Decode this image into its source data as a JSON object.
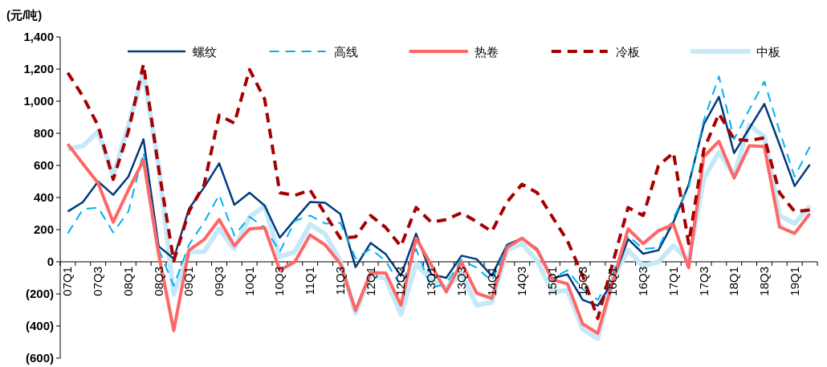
{
  "chart_data": {
    "type": "line",
    "ylabel": "(元/吨)",
    "categories": [
      "07Q1",
      null,
      "07Q3",
      null,
      "08Q1",
      null,
      "08Q3",
      null,
      "09Q1",
      null,
      "09Q3",
      null,
      "10Q1",
      null,
      "10Q3",
      null,
      "11Q1",
      null,
      "11Q3",
      null,
      "12Q1",
      null,
      "12Q3",
      null,
      "13Q1",
      null,
      "13Q3",
      null,
      "14Q1",
      null,
      "14Q3",
      null,
      "15Q1",
      null,
      "15Q3",
      null,
      "16Q1",
      null,
      "16Q3",
      null,
      "17Q1",
      null,
      "17Q3",
      null,
      "18Q1",
      null,
      "18Q3",
      null,
      "19Q1",
      null
    ],
    "series": [
      {
        "name": "螺纹",
        "color": "#003a7d",
        "line_style": "solid",
        "values": [
          313,
          372,
          500,
          417,
          530,
          763,
          97,
          20,
          330,
          463,
          613,
          355,
          430,
          350,
          150,
          263,
          372,
          367,
          297,
          -33,
          117,
          47,
          -87,
          175,
          -78,
          -100,
          38,
          17,
          -87,
          105,
          147,
          80,
          -103,
          -78,
          -237,
          -273,
          -120,
          142,
          50,
          72,
          247,
          480,
          855,
          1027,
          677,
          830,
          983,
          730,
          472,
          605
        ]
      },
      {
        "name": "高线",
        "color": "#00b0f0",
        "line_style": "dashed",
        "values": [
          177,
          327,
          338,
          183,
          313,
          680,
          80,
          -150,
          105,
          247,
          417,
          163,
          280,
          213,
          63,
          255,
          288,
          238,
          243,
          22,
          80,
          5,
          -153,
          80,
          -162,
          -137,
          13,
          -37,
          -120,
          97,
          147,
          72,
          -103,
          -53,
          -170,
          -237,
          -70,
          163,
          80,
          88,
          272,
          463,
          880,
          1155,
          763,
          947,
          1122,
          813,
          530,
          717
        ]
      },
      {
        "name": "热卷",
        "color": "#ff6666",
        "line_style": "solid",
        "values": [
          733,
          610,
          490,
          247,
          447,
          633,
          47,
          -428,
          72,
          138,
          263,
          100,
          205,
          213,
          -53,
          0,
          167,
          105,
          -12,
          -303,
          -67,
          -70,
          -270,
          147,
          -20,
          -187,
          -3,
          -195,
          -228,
          88,
          147,
          72,
          -112,
          -137,
          -387,
          -445,
          -120,
          205,
          113,
          193,
          233,
          -37,
          655,
          750,
          522,
          722,
          717,
          217,
          177,
          300
        ]
      },
      {
        "name": "冷板",
        "color": "#a50000",
        "line_style": "dashed",
        "values": [
          1177,
          1030,
          847,
          513,
          813,
          1230,
          580,
          5,
          313,
          480,
          913,
          863,
          1197,
          1013,
          430,
          413,
          447,
          297,
          147,
          155,
          288,
          213,
          97,
          338,
          247,
          263,
          305,
          250,
          188,
          372,
          483,
          430,
          280,
          130,
          -87,
          -353,
          -3,
          338,
          288,
          597,
          680,
          113,
          697,
          922,
          763,
          755,
          772,
          430,
          313,
          322
        ]
      },
      {
        "name": "中板",
        "color": "#c5e9f8",
        "line_style": "solid",
        "values": [
          700,
          722,
          810,
          538,
          847,
          1180,
          597,
          -203,
          63,
          63,
          205,
          80,
          280,
          347,
          30,
          63,
          233,
          172,
          5,
          -320,
          -87,
          -103,
          -328,
          -12,
          -112,
          -162,
          -70,
          -270,
          -253,
          72,
          113,
          5,
          -187,
          -178,
          -420,
          -478,
          -103,
          72,
          -28,
          0,
          100,
          5,
          517,
          683,
          538,
          850,
          780,
          288,
          238,
          347
        ]
      }
    ],
    "ylim": [
      -600,
      1400
    ],
    "yticks": [
      {
        "value": -600,
        "label": "(600)"
      },
      {
        "value": -400,
        "label": "(400)"
      },
      {
        "value": -200,
        "label": "(200)"
      },
      0,
      {
        "value": 200,
        "label": "200"
      },
      {
        "value": 400,
        "label": "400"
      },
      {
        "value": 600,
        "label": "600"
      },
      {
        "value": 800,
        "label": "800"
      },
      {
        "value": 1000,
        "label": "1,000"
      },
      {
        "value": 1200,
        "label": "1,200"
      },
      {
        "value": 1400,
        "label": "1,400"
      }
    ],
    "legend": "top",
    "grid": false
  }
}
